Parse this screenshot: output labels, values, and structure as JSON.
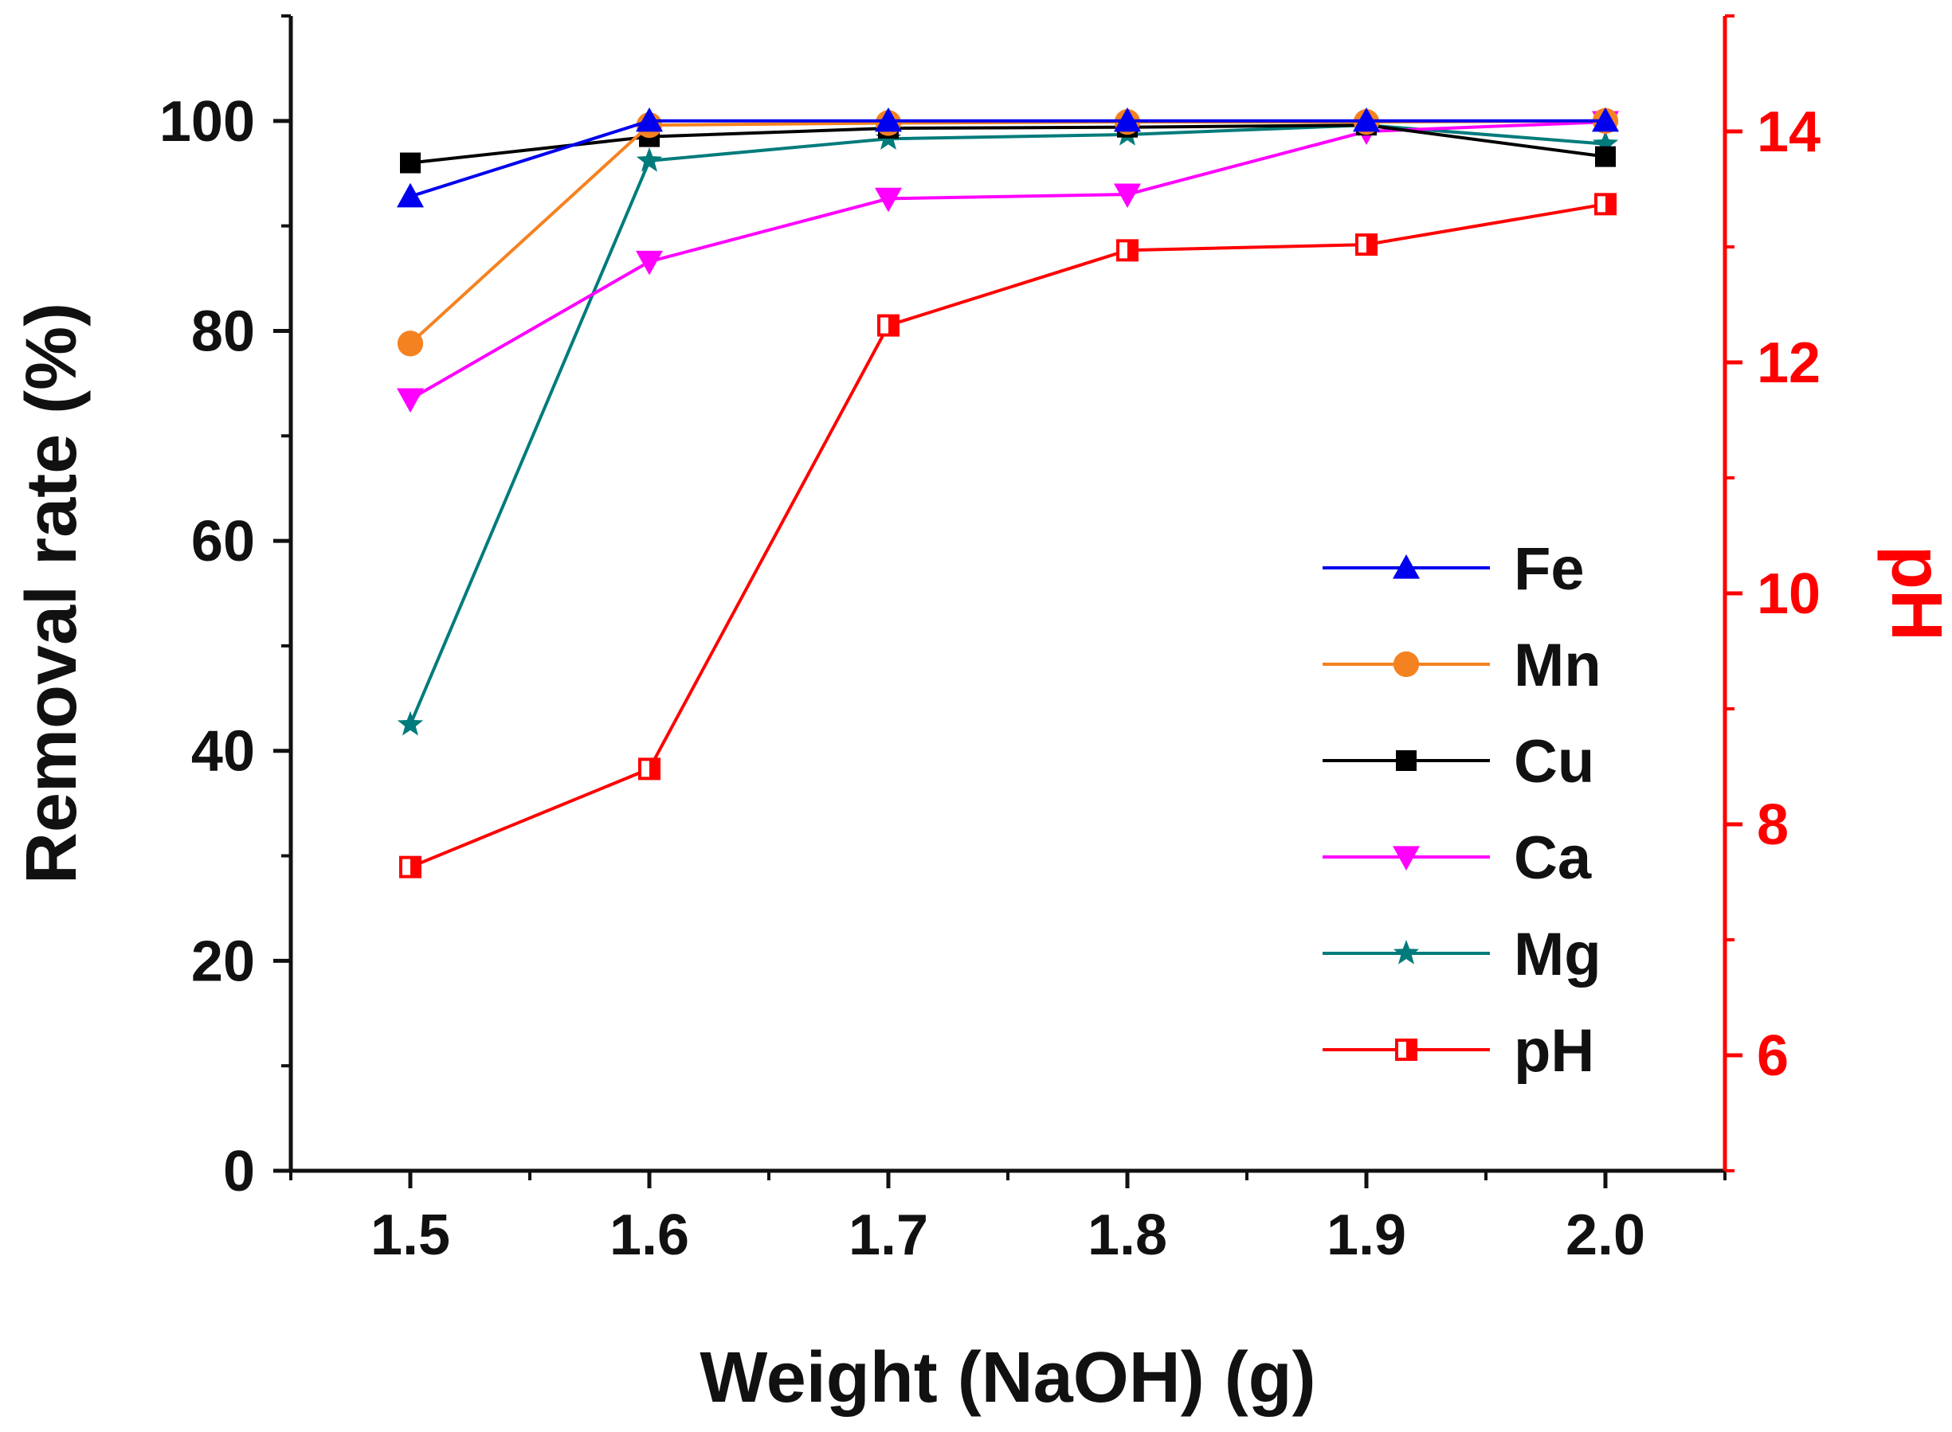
{
  "chart_data": {
    "type": "line",
    "title": "",
    "xlabel": "Weight (NaOH) (g)",
    "ylabel": "Removal rate (%)",
    "y2label": "pH",
    "x": [
      1.5,
      1.6,
      1.7,
      1.8,
      1.9,
      2.0
    ],
    "x_tick_labels": [
      "1.5",
      "1.6",
      "1.7",
      "1.8",
      "1.9",
      "2.0"
    ],
    "xlim": [
      1.45,
      2.05
    ],
    "ylim": [
      0,
      110
    ],
    "y_ticks": [
      0,
      20,
      40,
      60,
      80,
      100
    ],
    "y_tick_labels": [
      "0",
      "20",
      "40",
      "60",
      "80",
      "100"
    ],
    "y2lim": [
      5,
      15
    ],
    "y2_ticks": [
      6,
      8,
      10,
      12,
      14
    ],
    "y2_tick_labels": [
      "6",
      "8",
      "10",
      "12",
      "14"
    ],
    "grid": false,
    "legend_position": "right-center",
    "series": [
      {
        "name": "Fe",
        "axis": "left",
        "color": "#0000ee",
        "marker": "triangle-up",
        "values": [
          92.8,
          100,
          100,
          100,
          100,
          100
        ]
      },
      {
        "name": "Mn",
        "axis": "left",
        "color": "#f58220",
        "marker": "circle",
        "values": [
          78.8,
          99.6,
          99.8,
          99.9,
          99.9,
          100
        ]
      },
      {
        "name": "Cu",
        "axis": "left",
        "color": "#000000",
        "marker": "square",
        "values": [
          96,
          98.5,
          99.3,
          99.4,
          99.6,
          96.6
        ]
      },
      {
        "name": "Ca",
        "axis": "left",
        "color": "#ff00ff",
        "marker": "triangle-down",
        "values": [
          73.5,
          86.6,
          92.6,
          93,
          99,
          99.9
        ]
      },
      {
        "name": "Mg",
        "axis": "left",
        "color": "#007b7b",
        "marker": "star",
        "values": [
          42.5,
          96.2,
          98.3,
          98.7,
          99.6,
          97.8
        ]
      },
      {
        "name": "pH",
        "axis": "right",
        "color": "#ff0000",
        "marker": "half-square",
        "values": [
          7.63,
          8.48,
          12.32,
          12.97,
          13.02,
          13.37
        ]
      }
    ]
  }
}
